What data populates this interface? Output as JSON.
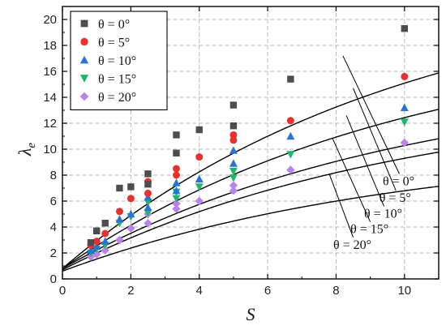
{
  "chart_data": {
    "type": "scatter",
    "xlabel": "S",
    "ylabel": "λ",
    "ylabel_sub": "e",
    "xlim": [
      0,
      11
    ],
    "ylim": [
      0,
      21
    ],
    "xticks": [
      0,
      2,
      4,
      6,
      8,
      10
    ],
    "yticks": [
      0,
      2,
      4,
      6,
      8,
      10,
      12,
      14,
      16,
      18,
      20
    ],
    "grid": true,
    "legend_position": "top-left",
    "series": [
      {
        "name": "θ = 0°",
        "marker": "square",
        "color": "#4d4d4d",
        "points": [
          [
            0.83,
            2.8
          ],
          [
            1.0,
            3.7
          ],
          [
            1.25,
            4.3
          ],
          [
            1.67,
            7.0
          ],
          [
            2.0,
            7.1
          ],
          [
            2.5,
            8.1
          ],
          [
            2.5,
            7.3
          ],
          [
            3.33,
            9.7
          ],
          [
            3.33,
            11.1
          ],
          [
            4.0,
            11.5
          ],
          [
            5.0,
            11.8
          ],
          [
            5.0,
            13.4
          ],
          [
            6.67,
            15.4
          ],
          [
            10.0,
            19.3
          ]
        ],
        "fit": [
          0.8,
          23.4,
          0.1
        ]
      },
      {
        "name": "θ = 5°",
        "marker": "circle",
        "color": "#e8312f",
        "points": [
          [
            0.83,
            2.6
          ],
          [
            1.0,
            2.9
          ],
          [
            1.25,
            3.5
          ],
          [
            1.67,
            5.2
          ],
          [
            2.0,
            6.2
          ],
          [
            2.5,
            6.6
          ],
          [
            2.5,
            7.5
          ],
          [
            3.33,
            8.0
          ],
          [
            3.33,
            8.5
          ],
          [
            4.0,
            9.4
          ],
          [
            5.0,
            10.7
          ],
          [
            5.0,
            11.1
          ],
          [
            6.67,
            12.2
          ],
          [
            10.0,
            15.6
          ]
        ],
        "fit": [
          0.8,
          19.2,
          0.1
        ]
      },
      {
        "name": "θ = 10°",
        "marker": "triangle-up",
        "color": "#2a73d6",
        "points": [
          [
            0.83,
            2.2
          ],
          [
            1.0,
            2.5
          ],
          [
            1.25,
            2.9
          ],
          [
            1.67,
            4.6
          ],
          [
            2.0,
            5.0
          ],
          [
            2.5,
            5.5
          ],
          [
            2.5,
            6.3
          ],
          [
            3.33,
            6.8
          ],
          [
            3.33,
            7.4
          ],
          [
            4.0,
            7.7
          ],
          [
            5.0,
            8.9
          ],
          [
            5.0,
            9.9
          ],
          [
            6.67,
            11.0
          ],
          [
            10.0,
            13.2
          ]
        ],
        "fit": [
          0.8,
          15.8,
          0.1
        ]
      },
      {
        "name": "θ = 15°",
        "marker": "triangle-down",
        "color": "#1db86a",
        "points": [
          [
            0.83,
            2.0
          ],
          [
            1.0,
            2.3
          ],
          [
            1.25,
            2.6
          ],
          [
            1.67,
            4.3
          ],
          [
            2.0,
            4.8
          ],
          [
            2.5,
            5.1
          ],
          [
            2.5,
            5.9
          ],
          [
            3.33,
            6.2
          ],
          [
            3.33,
            6.7
          ],
          [
            4.0,
            7.1
          ],
          [
            5.0,
            7.8
          ],
          [
            5.0,
            8.3
          ],
          [
            6.67,
            9.6
          ],
          [
            10.0,
            12.1
          ]
        ],
        "fit": [
          0.7,
          14.3,
          0.1
        ]
      },
      {
        "name": "θ = 20°",
        "marker": "diamond",
        "color": "#bb82ea",
        "points": [
          [
            0.83,
            1.7
          ],
          [
            1.0,
            1.9
          ],
          [
            1.25,
            2.2
          ],
          [
            1.67,
            3.0
          ],
          [
            2.0,
            3.9
          ],
          [
            2.5,
            4.3
          ],
          [
            2.5,
            5.0
          ],
          [
            3.33,
            5.4
          ],
          [
            3.33,
            5.8
          ],
          [
            4.0,
            6.0
          ],
          [
            5.0,
            6.8
          ],
          [
            5.0,
            7.2
          ],
          [
            6.67,
            8.4
          ],
          [
            10.0,
            10.5
          ]
        ],
        "fit": [
          0.6,
          10.4,
          0.1
        ]
      }
    ],
    "curve_labels": [
      {
        "text": "θ = 0°",
        "from": [
          8.2,
          17.2
        ],
        "to": [
          9.85,
          8.1
        ]
      },
      {
        "text": "θ = 5°",
        "from": [
          8.5,
          14.7
        ],
        "to": [
          9.75,
          6.8
        ]
      },
      {
        "text": "θ = 10°",
        "from": [
          8.3,
          12.6
        ],
        "to": [
          9.4,
          5.6
        ]
      },
      {
        "text": "θ = 15°",
        "from": [
          7.9,
          10.8
        ],
        "to": [
          9.0,
          4.4
        ]
      },
      {
        "text": "θ = 20°",
        "from": [
          7.8,
          8.1
        ],
        "to": [
          8.5,
          3.2
        ]
      }
    ]
  }
}
